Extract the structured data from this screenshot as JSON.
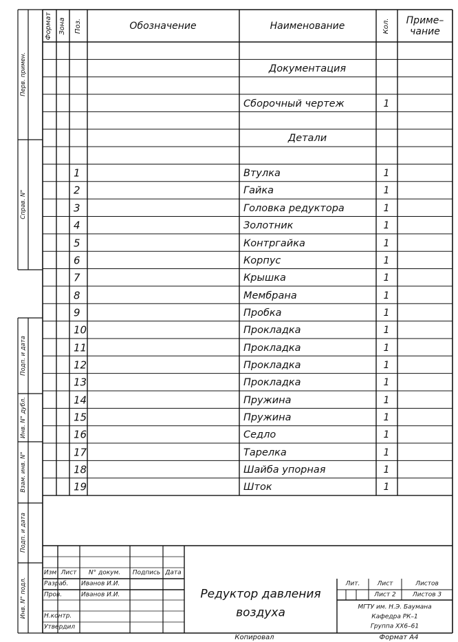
{
  "header": {
    "format": "Формат",
    "zone": "Зона",
    "pos": "Поз.",
    "designation": "Обозначение",
    "name": "Наименование",
    "qty": "Кол.",
    "note_line1": "Приме–",
    "note_line2": "чание"
  },
  "margin_labels": {
    "first_use": "Перв. примен.",
    "ref_no": "Справ. N°",
    "sign_date_1": "Подп. и дата",
    "dup_inv": "Инв. N° дубл.",
    "replace_inv": "Взам. инв. N°",
    "sign_date_2": "Подп. и дата",
    "orig_inv": "Инв. N° подл."
  },
  "rows": [
    {
      "pos": "",
      "name": "",
      "qty": "",
      "section": false
    },
    {
      "pos": "",
      "name": "Документация",
      "qty": "",
      "section": true
    },
    {
      "pos": "",
      "name": "",
      "qty": "",
      "section": false
    },
    {
      "pos": "",
      "name": "Сборочный чертеж",
      "qty": "1",
      "section": false
    },
    {
      "pos": "",
      "name": "",
      "qty": "",
      "section": false
    },
    {
      "pos": "",
      "name": "Детали",
      "qty": "",
      "section": true
    },
    {
      "pos": "",
      "name": "",
      "qty": "",
      "section": false
    },
    {
      "pos": "1",
      "name": "Втулка",
      "qty": "1",
      "section": false
    },
    {
      "pos": "2",
      "name": "Гайка",
      "qty": "1",
      "section": false
    },
    {
      "pos": "3",
      "name": "Головка редуктора",
      "qty": "1",
      "section": false
    },
    {
      "pos": "4",
      "name": "Золотник",
      "qty": "1",
      "section": false
    },
    {
      "pos": "5",
      "name": "Контргайка",
      "qty": "1",
      "section": false
    },
    {
      "pos": "6",
      "name": "Корпус",
      "qty": "1",
      "section": false
    },
    {
      "pos": "7",
      "name": "Крышка",
      "qty": "1",
      "section": false
    },
    {
      "pos": "8",
      "name": "Мембрана",
      "qty": "1",
      "section": false
    },
    {
      "pos": "9",
      "name": "Пробка",
      "qty": "1",
      "section": false
    },
    {
      "pos": "10",
      "name": "Прокладка",
      "qty": "1",
      "section": false
    },
    {
      "pos": "11",
      "name": "Прокладка",
      "qty": "1",
      "section": false
    },
    {
      "pos": "12",
      "name": "Прокладка",
      "qty": "1",
      "section": false
    },
    {
      "pos": "13",
      "name": "Прокладка",
      "qty": "1",
      "section": false
    },
    {
      "pos": "14",
      "name": "Пружина",
      "qty": "1",
      "section": false
    },
    {
      "pos": "15",
      "name": "Пружина",
      "qty": "1",
      "section": false
    },
    {
      "pos": "16",
      "name": "Седло",
      "qty": "1",
      "section": false
    },
    {
      "pos": "17",
      "name": "Тарелка",
      "qty": "1",
      "section": false
    },
    {
      "pos": "18",
      "name": "Шайба упорная",
      "qty": "1",
      "section": false
    },
    {
      "pos": "19",
      "name": "Шток",
      "qty": "1",
      "section": false
    }
  ],
  "title_block": {
    "col_change": "Изм",
    "col_sheet": "Лист",
    "col_doc_no": "N° докум.",
    "col_signature": "Подпись",
    "col_date": "Дата",
    "developed_label": "Разраб.",
    "developed_name": "Иванов И.И.",
    "checked_label": "Пров.",
    "checked_name": "Иванов И.И.",
    "norm_control_label": "Н.контр.",
    "approved_label": "Утвердил",
    "title_line1": "Редуктор давления",
    "title_line2": "воздуха",
    "lit_label": "Лит.",
    "sheet_label": "Лист",
    "sheets_label": "Листов",
    "sheet_value": "Лист 2",
    "sheets_value": "Листов 3",
    "org_line1": "МГТУ им. Н.Э. Баумана",
    "org_line2": "Кафедра РК–1",
    "org_line3": "Группа ХХ6–61"
  },
  "footer": {
    "copied": "Копировал",
    "format": "Формат А4"
  }
}
